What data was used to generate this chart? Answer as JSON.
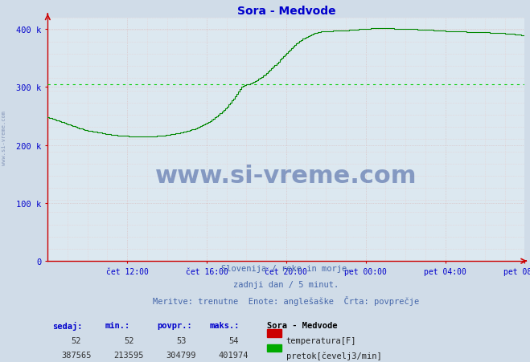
{
  "title": "Sora - Medvode",
  "title_color": "#0000cc",
  "bg_color": "#d0dce8",
  "plot_bg_color": "#dce8f0",
  "line_color_flow": "#008800",
  "line_color_temp": "#cc0000",
  "axis_color": "#cc0000",
  "tick_color": "#0000cc",
  "subtitle_color": "#4466aa",
  "subtitle_line1": "Slovenija / reke in morje.",
  "subtitle_line2": "zadnji dan / 5 minut.",
  "subtitle_line3": "Meritve: trenutne  Enote: anglešaške  Črta: povprečje",
  "yticks": [
    0,
    100000,
    200000,
    300000,
    400000
  ],
  "ytick_labels": [
    "0",
    "100 k",
    "200 k",
    "300 k",
    "400 k"
  ],
  "ylim": [
    0,
    420000
  ],
  "xtick_labels": [
    "čet 12:00",
    "čet 16:00",
    "čet 20:00",
    "pet 00:00",
    "pet 04:00",
    "pet 08:00"
  ],
  "num_points": 289,
  "flow_data_y": [
    248000,
    247000,
    246000,
    245000,
    244000,
    243000,
    242000,
    241000,
    240000,
    239000,
    238000,
    237000,
    236000,
    235000,
    234000,
    233000,
    232000,
    231000,
    230000,
    229000,
    228000,
    227000,
    226000,
    225500,
    225000,
    224500,
    224000,
    223500,
    223000,
    222500,
    222000,
    221500,
    221000,
    220500,
    220000,
    219500,
    219000,
    218500,
    218000,
    217500,
    217000,
    216800,
    216600,
    216400,
    216200,
    216000,
    215800,
    215600,
    215400,
    215200,
    215000,
    215000,
    215000,
    215000,
    215000,
    215000,
    215000,
    215000,
    215000,
    215000,
    215000,
    215000,
    215000,
    215100,
    215200,
    215300,
    215500,
    215700,
    216000,
    216300,
    216600,
    217000,
    217400,
    217800,
    218200,
    218700,
    219200,
    219700,
    220200,
    220800,
    221400,
    222000,
    222700,
    223400,
    224200,
    225000,
    225800,
    226700,
    227600,
    228600,
    229700,
    231000,
    232300,
    233600,
    235000,
    236500,
    238000,
    239700,
    241400,
    243200,
    245200,
    247300,
    249500,
    252000,
    254500,
    257200,
    260000,
    263000,
    266200,
    269500,
    273000,
    276600,
    280300,
    284200,
    288200,
    292300,
    296500,
    300500,
    302000,
    303000,
    304000,
    305000,
    306200,
    307500,
    309000,
    310500,
    312000,
    313700,
    315500,
    317400,
    319500,
    321700,
    324000,
    326400,
    329000,
    331700,
    334500,
    337500,
    340500,
    343700,
    347000,
    350000,
    353000,
    356000,
    359000,
    362000,
    364500,
    367000,
    369500,
    372000,
    374500,
    376800,
    379000,
    381200,
    383000,
    384800,
    386500,
    388000,
    389500,
    390800,
    392000,
    393000,
    393800,
    394500,
    395000,
    395400,
    395700,
    395900,
    396000,
    396200,
    396400,
    396600,
    396800,
    397000,
    397200,
    397400,
    397500,
    397600,
    397700,
    397800,
    397900,
    398000,
    398200,
    398400,
    398600,
    398800,
    399000,
    399200,
    399400,
    399600,
    399800,
    400000,
    400200,
    400400,
    400600,
    400800,
    401000,
    401200,
    401400,
    401600,
    401800,
    401974,
    401900,
    401800,
    401600,
    401400,
    401200,
    401000,
    400800,
    400700,
    400600,
    400500,
    400400,
    400300,
    400200,
    400100,
    400000,
    399900,
    399800,
    399700,
    399600,
    399500,
    399400,
    399300,
    399200,
    399100,
    399000,
    398900,
    398800,
    398700,
    398500,
    398300,
    398100,
    397900,
    397700,
    397500,
    397300,
    397100,
    396900,
    396700,
    396500,
    396400,
    396300,
    396200,
    396100,
    396000,
    395900,
    395800,
    395700,
    395600,
    395500,
    395400,
    395300,
    395200,
    395100,
    395000,
    394900,
    394800,
    394700,
    394600,
    394500,
    394400,
    394300,
    394200,
    394100,
    394000,
    393900,
    393800,
    393700,
    393600,
    393500,
    393300,
    393100,
    392900,
    392700,
    392500,
    392300,
    392100,
    391900,
    391700,
    391500,
    391200,
    390900,
    390600,
    390300,
    390000,
    389700,
    389400,
    389100
  ],
  "hline_y": 304799,
  "hline_color": "#00cc00",
  "watermark_text": "www.si-vreme.com",
  "watermark_color": "#1a3a8a",
  "watermark_alpha": 0.45,
  "left_label": "www.si-vreme.com",
  "left_label_color": "#8899bb",
  "stats_labels": [
    "sedaj:",
    "min.:",
    "povpr.:",
    "maks.:"
  ],
  "stats_temp": [
    52,
    52,
    53,
    54
  ],
  "stats_flow": [
    387565,
    213595,
    304799,
    401974
  ],
  "legend_title": "Sora - Medvode",
  "legend_temp_label": "temperatura[F]",
  "legend_flow_label": "pretok[čevelj3/min]",
  "temp_color": "#cc0000",
  "flow_color": "#00aa00"
}
